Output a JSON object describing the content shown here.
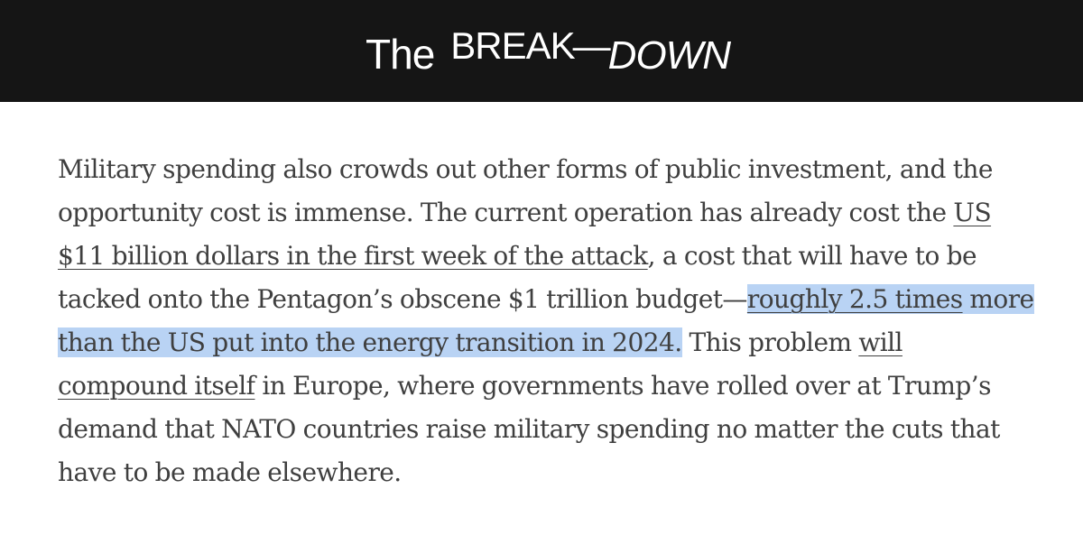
{
  "header": {
    "logo_the": "The",
    "logo_break": "BREAK",
    "logo_dash": "—",
    "logo_down": "DOWN"
  },
  "colors": {
    "header_bg": "#151515",
    "text": "#3f3f3f",
    "selection_highlight": "#b9d3f4"
  },
  "article": {
    "line1": "Military spending also crowds out other forms of public investment, and the",
    "line2_text": "opportunity cost is immense. The current operation has already cost the ",
    "line2_link": "US",
    "line3_link": "$11 billion dollars in the first week of the attack",
    "line3_text": ", a cost that will have to be",
    "line4_text": "tacked onto the Pentagon’s obscene $1 trillion budget—",
    "line4_link_hl": "roughly 2.5 times",
    "line4_text_hl": " more",
    "line5_text_hl": "than the US put into the energy transition in 2024.",
    "line5_text": " This problem ",
    "line5_link": "will",
    "line6_link": "compound itself",
    "line6_text": " in Europe, where governments have rolled over at Trump’s",
    "line7": "demand that NATO countries raise military spending no matter the cuts that",
    "line8": "have to be made elsewhere."
  }
}
